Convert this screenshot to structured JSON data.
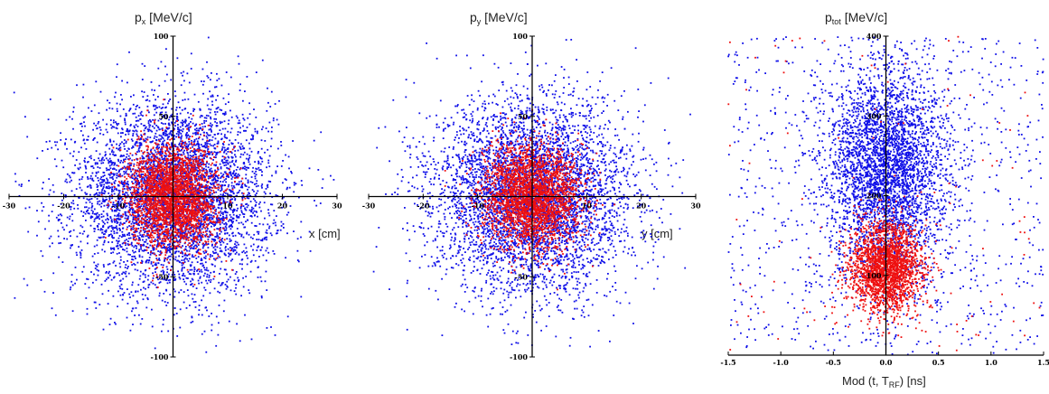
{
  "colors": {
    "outer": "#1010e8",
    "core": "#ee1010",
    "axis": "#000000"
  },
  "chart_data": [
    {
      "type": "scatter",
      "title": {
        "main": "p",
        "sub": "x",
        "unit": " [MeV/c]"
      },
      "xlabel": {
        "main": "x [cm]"
      },
      "xlim": [
        -30,
        30
      ],
      "ylim": [
        -100,
        100
      ],
      "x_ticks": [
        "-30",
        "-20",
        "-10",
        "10",
        "20",
        "30"
      ],
      "y_ticks": [
        "100",
        "50",
        "-50",
        "-100"
      ],
      "series": [
        {
          "color": "blue",
          "distribution": "gaussian",
          "center": [
            0,
            0
          ],
          "sigma": [
            9,
            30
          ],
          "count": 5000
        },
        {
          "color": "red",
          "distribution": "gaussian",
          "center": [
            0,
            0
          ],
          "sigma": [
            4,
            16
          ],
          "count": 2600
        }
      ]
    },
    {
      "type": "scatter",
      "title": {
        "main": "p",
        "sub": "y",
        "unit": " [MeV/c]"
      },
      "xlabel": {
        "main": "y [cm]"
      },
      "xlim": [
        -30,
        30
      ],
      "ylim": [
        -100,
        100
      ],
      "x_ticks": [
        "-30",
        "-20",
        "-10",
        "10",
        "20",
        "30"
      ],
      "y_ticks": [
        "100",
        "50",
        "-50",
        "-100"
      ],
      "series": [
        {
          "color": "blue",
          "distribution": "gaussian",
          "center": [
            0,
            0
          ],
          "sigma": [
            9,
            30
          ],
          "count": 5000
        },
        {
          "color": "red",
          "distribution": "gaussian",
          "center": [
            0,
            0
          ],
          "sigma": [
            4.5,
            16
          ],
          "count": 2600
        }
      ]
    },
    {
      "type": "scatter",
      "title": {
        "main": "p",
        "sub": "tot",
        "unit": " [MeV/c]"
      },
      "xlabel": {
        "main": "Mod (t, T",
        "sub": "RF",
        "unit": ") [ns]"
      },
      "xlim": [
        -1.5,
        1.5
      ],
      "ylim": [
        0,
        400
      ],
      "x_ticks": [
        "-1.5",
        "-1.0",
        "-0.5",
        "0.0",
        "0.5",
        "1.0",
        "1.5"
      ],
      "y_ticks": [
        "400",
        "300",
        "200",
        "100"
      ],
      "series": [
        {
          "color": "blue",
          "distribution": "gaussian",
          "center": [
            0,
            230
          ],
          "sigma": [
            0.28,
            65
          ],
          "count": 3500
        },
        {
          "color": "blue",
          "distribution": "uniform",
          "count": 900
        },
        {
          "color": "red",
          "distribution": "gaussian",
          "center": [
            0,
            110
          ],
          "sigma": [
            0.17,
            28
          ],
          "count": 2200
        },
        {
          "color": "red",
          "distribution": "uniform",
          "count": 100
        }
      ]
    }
  ]
}
